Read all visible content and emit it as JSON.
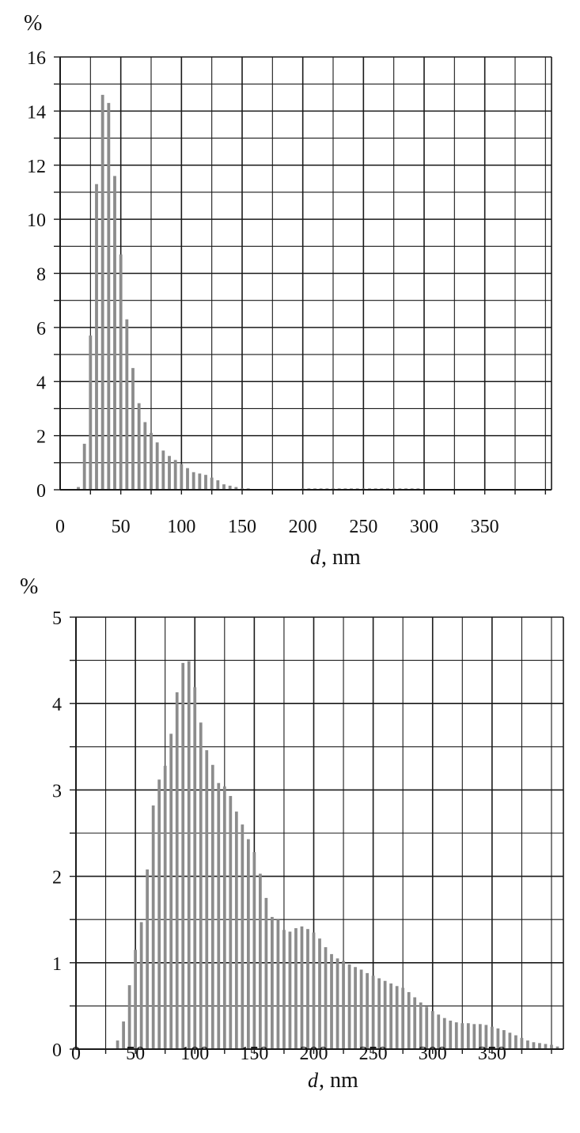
{
  "colors": {
    "bar": "#8c8c8c",
    "grid": "#1a1a1a",
    "text": "#111111"
  },
  "chart_data": [
    {
      "type": "bar",
      "title": "",
      "ylabel": "%",
      "xlabel": {
        "var": "d",
        "unit": ", nm"
      },
      "xlim": [
        0,
        405
      ],
      "ylim": [
        0,
        16
      ],
      "x_ticks": [
        0,
        50,
        100,
        150,
        200,
        250,
        300,
        350
      ],
      "y_ticks": [
        0,
        2,
        4,
        6,
        8,
        10,
        12,
        14,
        16
      ],
      "grid": true,
      "bar_width": 2.5,
      "series": [
        {
          "x": [
            15,
            20,
            25,
            30,
            35,
            40,
            45,
            50,
            55,
            60,
            65,
            70,
            75,
            80,
            85,
            90,
            95,
            100,
            105,
            110,
            115,
            120,
            125,
            130,
            135,
            140,
            145,
            150,
            155,
            160,
            165,
            170,
            175,
            180,
            185,
            190,
            195,
            200,
            205,
            210,
            215,
            220,
            225,
            230,
            235,
            240,
            245,
            250,
            255,
            260,
            265,
            270,
            275,
            280,
            285,
            290,
            295,
            300
          ],
          "values": [
            0.1,
            1.7,
            5.7,
            11.3,
            14.6,
            14.3,
            11.6,
            8.7,
            6.3,
            4.5,
            3.2,
            2.5,
            2.1,
            1.75,
            1.45,
            1.25,
            1.1,
            0.95,
            0.8,
            0.65,
            0.6,
            0.55,
            0.45,
            0.35,
            0.2,
            0.15,
            0.1,
            0.05,
            0.05,
            0.02,
            0.02,
            0.02,
            0.02,
            0.02,
            0.02,
            0.02,
            0.02,
            0.05,
            0.05,
            0.05,
            0.05,
            0.05,
            0.05,
            0.05,
            0.05,
            0.05,
            0.05,
            0.05,
            0.05,
            0.05,
            0.05,
            0.05,
            0.05,
            0.05,
            0.05,
            0.05,
            0.05,
            0.02
          ]
        }
      ]
    },
    {
      "type": "bar",
      "title": "",
      "ylabel": "%",
      "xlabel": {
        "var": "d",
        "unit": ", nm"
      },
      "xlim": [
        0,
        410
      ],
      "ylim": [
        0,
        5
      ],
      "x_ticks": [
        0,
        50,
        100,
        150,
        200,
        250,
        300,
        350
      ],
      "y_ticks": [
        0,
        1,
        2,
        3,
        4,
        5
      ],
      "grid": true,
      "bar_width": 2.5,
      "series": [
        {
          "x": [
            35,
            40,
            45,
            50,
            55,
            60,
            65,
            70,
            75,
            80,
            85,
            90,
            95,
            100,
            105,
            110,
            115,
            120,
            125,
            130,
            135,
            140,
            145,
            150,
            155,
            160,
            165,
            170,
            175,
            180,
            185,
            190,
            195,
            200,
            205,
            210,
            215,
            220,
            225,
            230,
            235,
            240,
            245,
            250,
            255,
            260,
            265,
            270,
            275,
            280,
            285,
            290,
            295,
            300,
            305,
            310,
            315,
            320,
            325,
            330,
            335,
            340,
            345,
            350,
            355,
            360,
            365,
            370,
            375,
            380,
            385,
            390,
            395,
            400,
            405
          ],
          "values": [
            0.1,
            0.32,
            0.74,
            1.15,
            1.47,
            2.08,
            2.82,
            3.12,
            3.28,
            3.65,
            4.13,
            4.47,
            4.49,
            4.19,
            3.78,
            3.46,
            3.29,
            3.08,
            3.04,
            2.93,
            2.75,
            2.6,
            2.43,
            2.28,
            2.03,
            1.75,
            1.53,
            1.5,
            1.38,
            1.36,
            1.4,
            1.42,
            1.39,
            1.35,
            1.28,
            1.18,
            1.1,
            1.05,
            1.02,
            0.98,
            0.95,
            0.92,
            0.88,
            0.85,
            0.82,
            0.79,
            0.76,
            0.73,
            0.71,
            0.66,
            0.6,
            0.54,
            0.49,
            0.44,
            0.4,
            0.36,
            0.33,
            0.31,
            0.3,
            0.3,
            0.29,
            0.29,
            0.28,
            0.26,
            0.24,
            0.22,
            0.19,
            0.16,
            0.13,
            0.1,
            0.08,
            0.07,
            0.06,
            0.05,
            0.03
          ]
        }
      ]
    }
  ]
}
